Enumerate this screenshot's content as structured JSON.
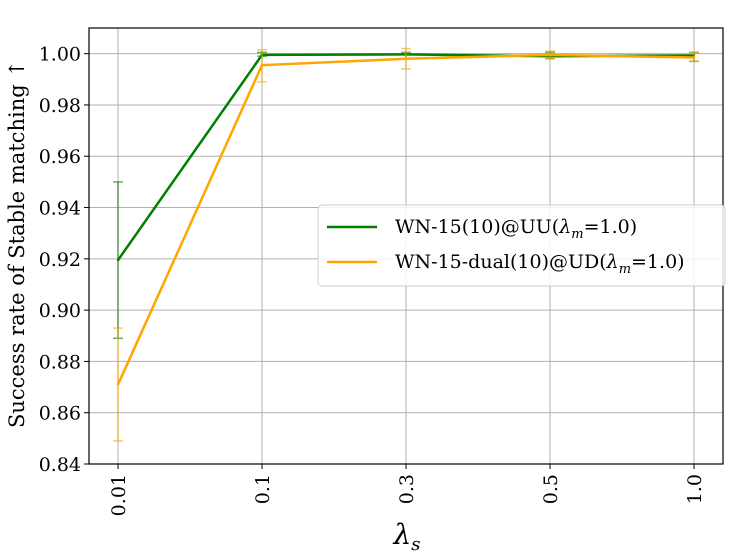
{
  "chart_data": {
    "type": "line",
    "categories": [
      "0.01",
      "0.1",
      "0.3",
      "0.5",
      "1.0"
    ],
    "xlabel_main": "λ",
    "xlabel_sub": "s",
    "ylabel": "Success rate of Stable matching ↑",
    "ylim": [
      0.84,
      1.01
    ],
    "yticks": [
      "0.84",
      "0.86",
      "0.88",
      "0.90",
      "0.92",
      "0.94",
      "0.96",
      "0.98",
      "1.00"
    ],
    "grid": true,
    "legend_position": "center-right",
    "series": [
      {
        "name": "WN-15(10)@UU(λm=1.0)",
        "legend_prefix": "WN-15(10)@UU(",
        "legend_lambda": "λ",
        "legend_sub": "m",
        "legend_suffix": "=1.0)",
        "color": "#008000",
        "values": [
          0.9195,
          0.9995,
          0.9997,
          0.999,
          0.9993
        ],
        "err_low": [
          0.889,
          0.999,
          0.998,
          0.998,
          0.997
        ],
        "err_high": [
          0.95,
          1.0005,
          1.0005,
          1.0005,
          1.0005
        ]
      },
      {
        "name": "WN-15-dual(10)@UD(λm=1.0)",
        "legend_prefix": "WN-15-dual(10)@UD(",
        "legend_lambda": "λ",
        "legend_sub": "m",
        "legend_suffix": "=1.0)",
        "color": "#ffa500",
        "values": [
          0.871,
          0.9955,
          0.998,
          0.9995,
          0.9985
        ],
        "err_low": [
          0.849,
          0.989,
          0.994,
          0.998,
          0.997
        ],
        "err_high": [
          0.893,
          1.0015,
          1.002,
          1.001,
          1.0005
        ]
      }
    ]
  }
}
